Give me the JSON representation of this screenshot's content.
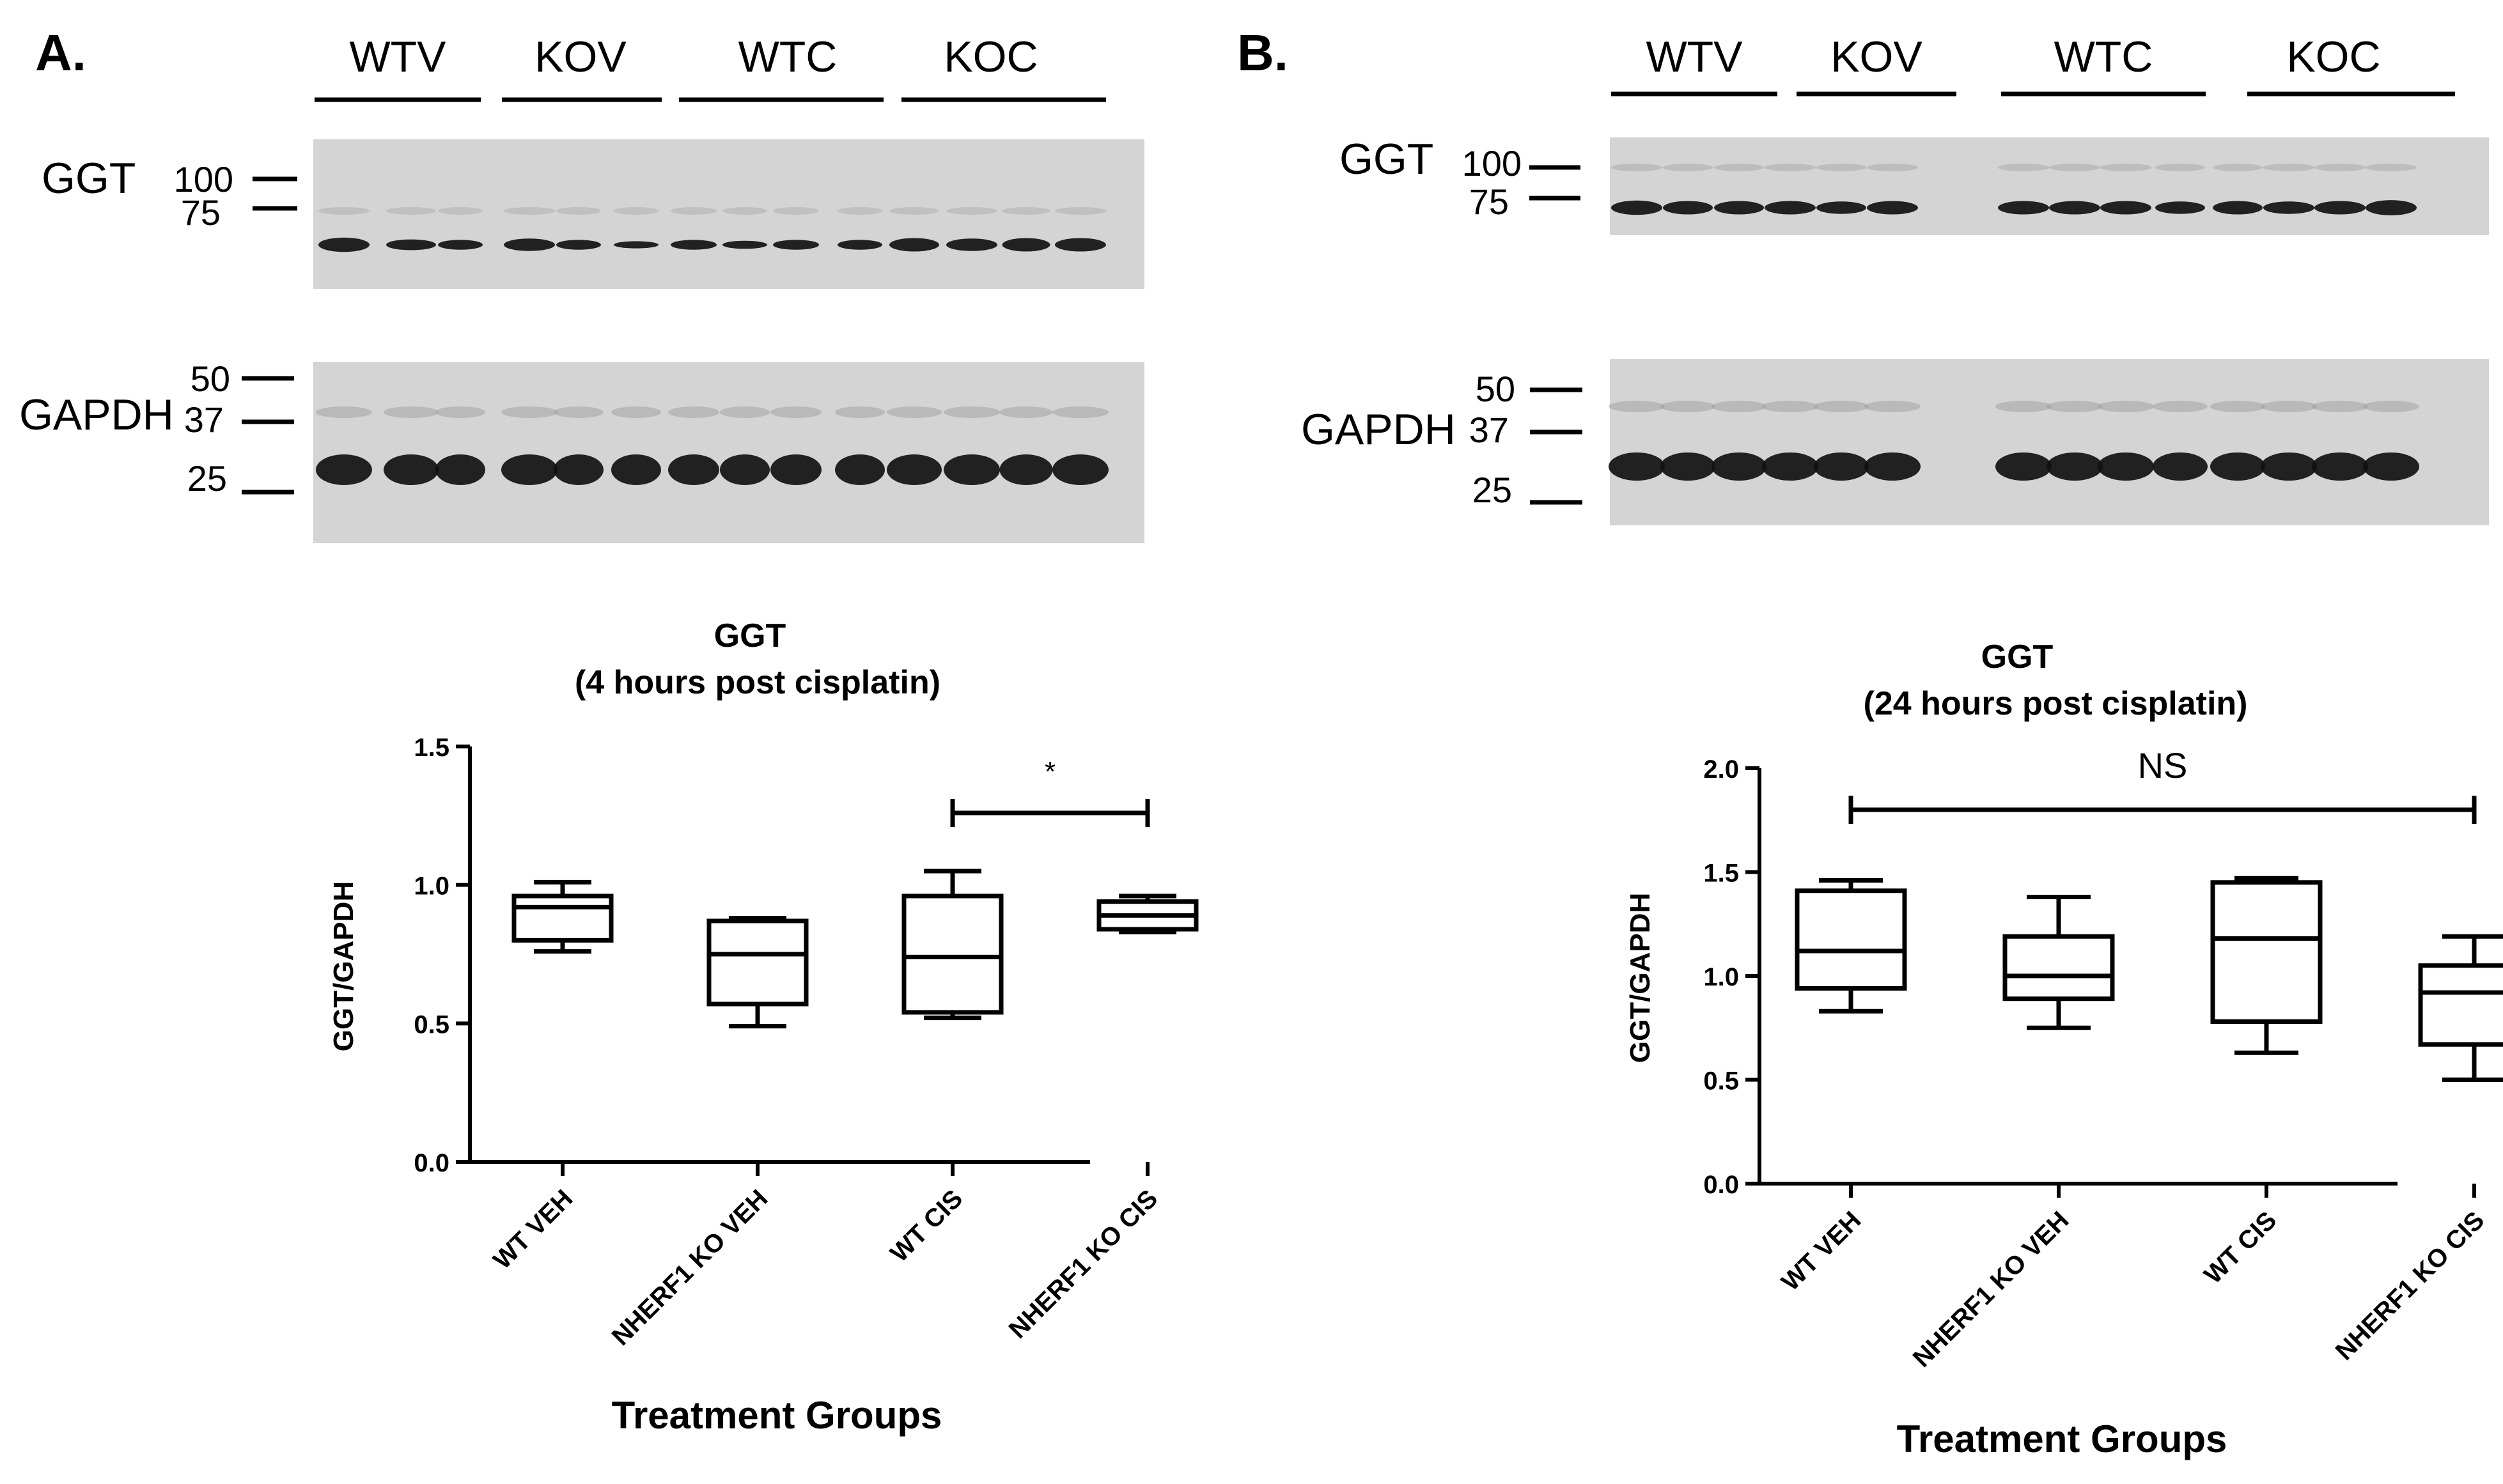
{
  "panels": [
    {
      "label": "A.",
      "lane_groups": [
        "WTV",
        "KOV",
        "WTC",
        "KOC"
      ],
      "blots": [
        {
          "protein": "GGT",
          "markers": [
            "100",
            "75"
          ]
        },
        {
          "protein": "GAPDH",
          "markers": [
            "50",
            "37",
            "25"
          ]
        }
      ]
    },
    {
      "label": "B.",
      "lane_groups": [
        "WTV",
        "KOV",
        "WTC",
        "KOC"
      ],
      "blots": [
        {
          "protein": "GGT",
          "markers": [
            "100",
            "75"
          ]
        },
        {
          "protein": "GAPDH",
          "markers": [
            "50",
            "37",
            "25"
          ]
        }
      ]
    }
  ],
  "colors": {
    "ink": "#000000",
    "blot_bg": "#d2d2d2",
    "band": "#111111"
  },
  "chart_data": [
    {
      "type": "box",
      "title": "GGT",
      "subtitle": "(4 hours post cisplatin)",
      "xlabel": "Treatment Groups",
      "ylabel": "GGT/GAPDH",
      "ylim": [
        0,
        1.5
      ],
      "yticks": [
        "0.0",
        "0.5",
        "1.0",
        "1.5"
      ],
      "categories": [
        "WT VEH",
        "NHERF1 KO VEH",
        "WT CIS",
        "NHERF1 KO CIS"
      ],
      "boxes": [
        {
          "min": 0.76,
          "q1": 0.8,
          "median": 0.92,
          "q3": 0.96,
          "max": 1.01
        },
        {
          "min": 0.49,
          "q1": 0.57,
          "median": 0.75,
          "q3": 0.87,
          "max": 0.88
        },
        {
          "min": 0.52,
          "q1": 0.54,
          "median": 0.74,
          "q3": 0.96,
          "max": 1.05
        },
        {
          "min": 0.83,
          "q1": 0.84,
          "median": 0.89,
          "q3": 0.94,
          "max": 0.96
        }
      ],
      "significance": {
        "from": 2,
        "to": 3,
        "y": 1.26,
        "label": "*"
      }
    },
    {
      "type": "box",
      "title": "GGT",
      "subtitle": "(24 hours post cisplatin)",
      "xlabel": "Treatment Groups",
      "ylabel": "GGT/GAPDH",
      "ylim": [
        0,
        2.0
      ],
      "yticks": [
        "0.0",
        "0.5",
        "1.0",
        "1.5",
        "2.0"
      ],
      "categories": [
        "WT VEH",
        "NHERF1 KO VEH",
        "WT CIS",
        "NHERF1 KO CIS"
      ],
      "boxes": [
        {
          "min": 0.83,
          "q1": 0.94,
          "median": 1.12,
          "q3": 1.41,
          "max": 1.46
        },
        {
          "min": 0.75,
          "q1": 0.89,
          "median": 1.0,
          "q3": 1.19,
          "max": 1.38
        },
        {
          "min": 0.63,
          "q1": 0.78,
          "median": 1.18,
          "q3": 1.45,
          "max": 1.47
        },
        {
          "min": 0.5,
          "q1": 0.67,
          "median": 0.92,
          "q3": 1.05,
          "max": 1.19
        }
      ],
      "significance": {
        "from": 0,
        "to": 3,
        "y": 1.8,
        "label": "NS"
      }
    }
  ]
}
